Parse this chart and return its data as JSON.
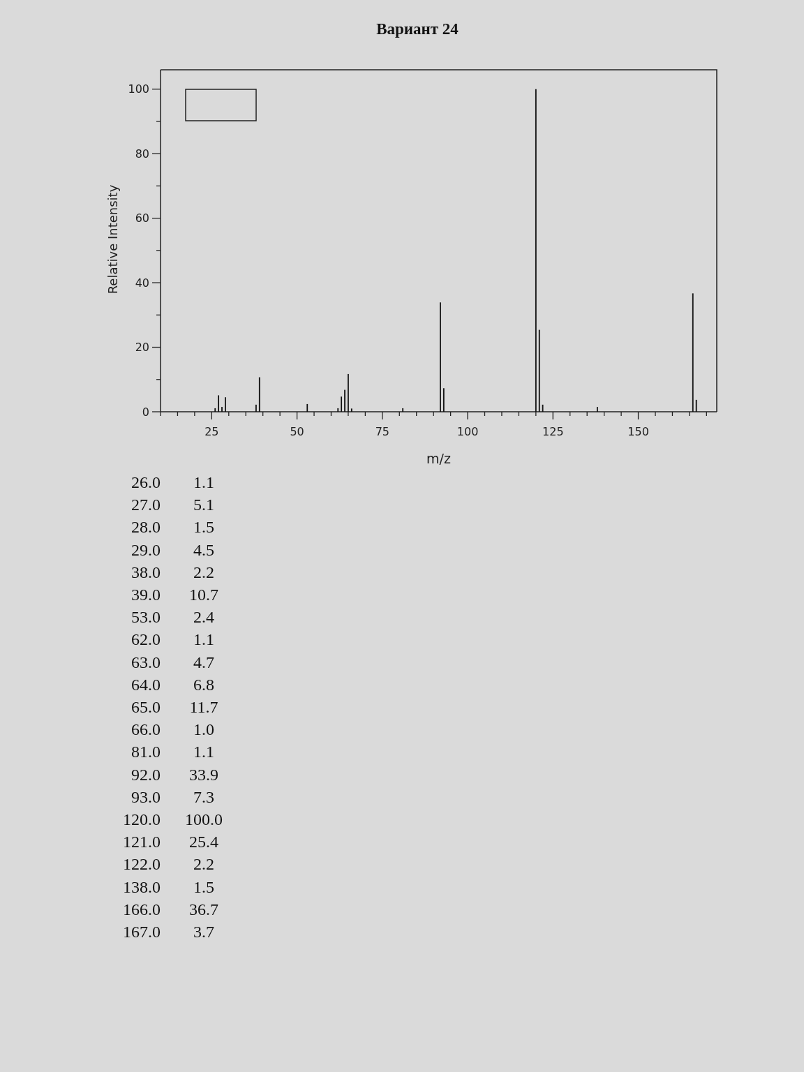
{
  "chart_data": [
    {
      "type": "bar",
      "title": "Вариант 24",
      "xlabel": "m/z",
      "ylabel": "Relative Intensity",
      "x": [
        26,
        27,
        28,
        29,
        38,
        39,
        53,
        62,
        63,
        64,
        65,
        66,
        81,
        92,
        93,
        120,
        121,
        122,
        138,
        166,
        167
      ],
      "values": [
        1.1,
        5.1,
        1.5,
        4.5,
        2.2,
        10.7,
        2.4,
        1.1,
        4.7,
        6.8,
        11.7,
        1.0,
        1.1,
        33.9,
        7.3,
        100.0,
        25.4,
        2.2,
        1.5,
        36.7,
        3.7
      ],
      "color": "#111111",
      "xlim": [
        10,
        173
      ],
      "ylim": [
        0,
        106
      ],
      "xticks": [
        {
          "value": 10,
          "label": null
        },
        {
          "value": 15,
          "label": null
        },
        {
          "value": 20,
          "label": null
        },
        25,
        {
          "value": 30,
          "label": null
        },
        {
          "value": 35,
          "label": null
        },
        {
          "value": 40,
          "label": null
        },
        {
          "value": 45,
          "label": null
        },
        50,
        {
          "value": 55,
          "label": null
        },
        {
          "value": 60,
          "label": null
        },
        {
          "value": 65,
          "label": null
        },
        {
          "value": 70,
          "label": null
        },
        75,
        {
          "value": 80,
          "label": null
        },
        {
          "value": 85,
          "label": null
        },
        {
          "value": 90,
          "label": null
        },
        {
          "value": 95,
          "label": null
        },
        100,
        {
          "value": 105,
          "label": null
        },
        {
          "value": 110,
          "label": null
        },
        {
          "value": 115,
          "label": null
        },
        {
          "value": 120,
          "label": null
        },
        125,
        {
          "value": 130,
          "label": null
        },
        {
          "value": 135,
          "label": null
        },
        {
          "value": 140,
          "label": null
        },
        {
          "value": 145,
          "label": null
        },
        150,
        {
          "value": 155,
          "label": null
        },
        {
          "value": 160,
          "label": null
        },
        {
          "value": 165,
          "label": null
        },
        {
          "value": 170,
          "label": null
        }
      ],
      "yticks": [
        0,
        {
          "value": 10,
          "label": null
        },
        20,
        {
          "value": 30,
          "label": null
        },
        40,
        {
          "value": 50,
          "label": null
        },
        60,
        {
          "value": 70,
          "label": null
        },
        80,
        {
          "value": 90,
          "label": null
        },
        100
      ]
    },
    {
      "type": "other",
      "annotations": [
        "26.0",
        "1.1",
        "27.0",
        "5.1",
        "28.0",
        "1.5",
        "29.0",
        "4.5",
        "38.0",
        "2.2",
        "39.0",
        "10.7",
        "53.0",
        "2.4",
        "62.0",
        "1.1",
        "63.0",
        "4.7",
        "64.0",
        "6.8",
        "65.0",
        "11.7",
        "66.0",
        "1.0",
        "81.0",
        "1.1",
        "92.0",
        "33.9",
        "93.0",
        "7.3",
        "120.0",
        "100.0",
        "121.0",
        "25.4",
        "122.0",
        "2.2",
        "138.0",
        "1.5",
        "166.0",
        "36.7",
        "167.0",
        "3.7"
      ]
    }
  ]
}
